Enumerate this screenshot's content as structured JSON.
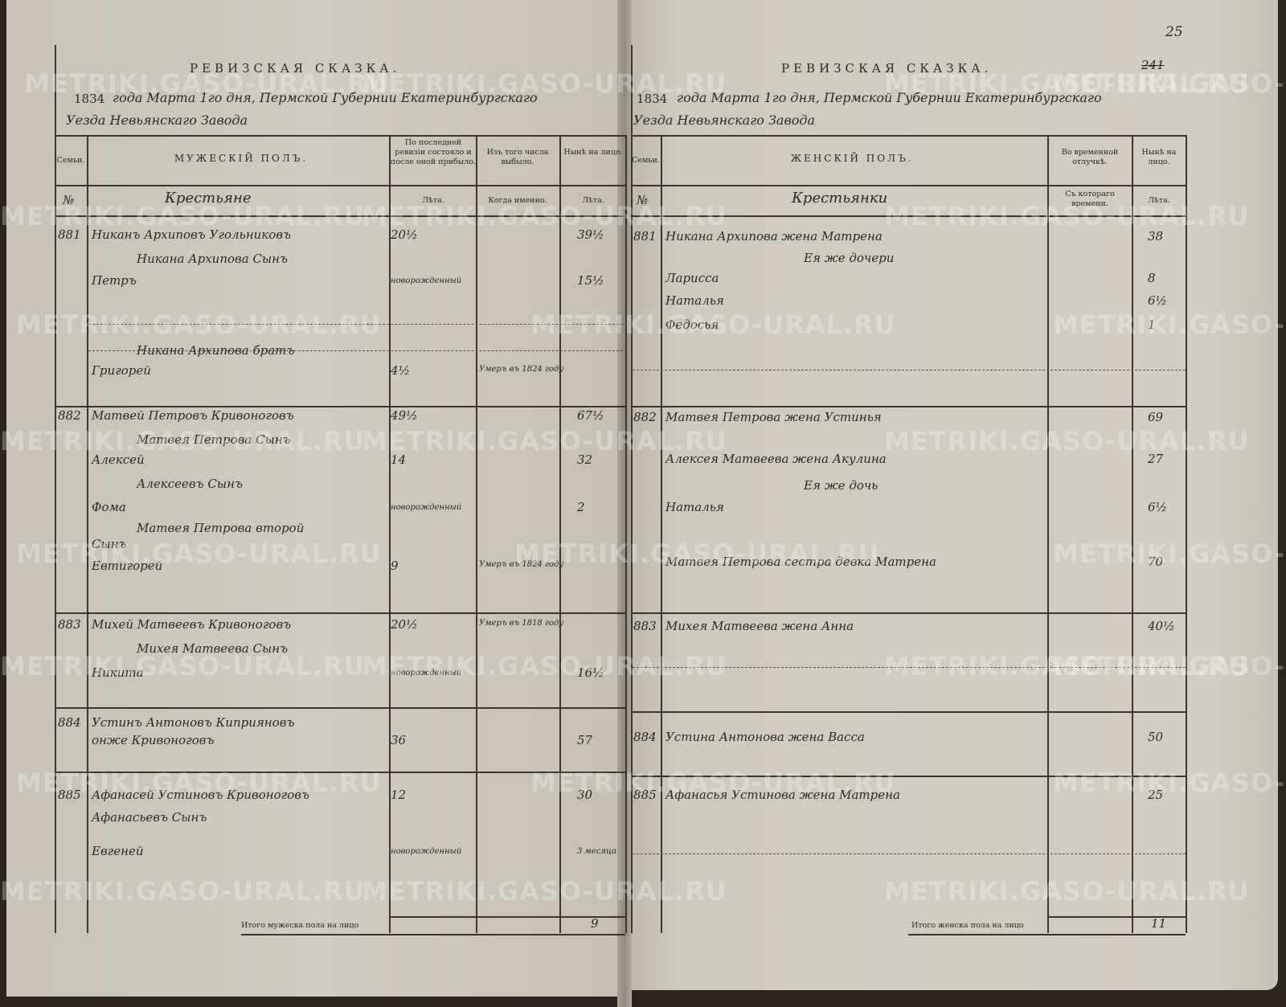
{
  "watermark": "METRIKI.GASO-URAL.RU",
  "page_number": "25",
  "old_page_number": "241",
  "left": {
    "title": "РЕВИЗСКАЯ СКАЗКА.",
    "year_printed": "1834",
    "date_line": "года Марта 1го дня, Пермской Губернии Екатеринбургскаго",
    "date_line2": "Уезда Невьянскаго Завода",
    "headers": {
      "family": "Семьи.",
      "sex": "МУЖЕСКІЙ ПОЛЪ.",
      "last_revision": "По последней ревизіи состояло и после оной прибыло.",
      "dropped": "Изъ того числа выбыло.",
      "present": "Нынѣ на лицо.",
      "no": "№",
      "estate": "Крестьяне",
      "years1": "Лѣта.",
      "when": "Когда именно.",
      "years2": "Лѣта."
    },
    "lines": [
      {
        "no": "881",
        "name": "Никанъ Архиповъ Угольниковъ",
        "age_last": "20½",
        "dropped": "",
        "age_now": "39½"
      },
      {
        "no": "",
        "name": "Никана Архипова Сынъ",
        "indent": true
      },
      {
        "no": "",
        "name": "Петръ",
        "age_last": "новорожденный",
        "dropped": "",
        "age_now": "15½"
      },
      {
        "no": "",
        "name": "Никана Архипова братъ",
        "indent": true
      },
      {
        "no": "",
        "name": "Григорей",
        "age_last": "4½",
        "dropped": "Умеръ въ 1824 году",
        "age_now": ""
      },
      {
        "no": "882",
        "name": "Матвей Петровъ Кривоноговъ",
        "age_last": "49½",
        "dropped": "",
        "age_now": "67½"
      },
      {
        "no": "",
        "name": "Матвея Петрова Сынъ",
        "indent": true
      },
      {
        "no": "",
        "name": "Алексей",
        "age_last": "14",
        "dropped": "",
        "age_now": "32"
      },
      {
        "no": "",
        "name": "Алексеевъ Сынъ",
        "indent": true
      },
      {
        "no": "",
        "name": "Фома",
        "age_last": "новорожденный",
        "dropped": "",
        "age_now": "2"
      },
      {
        "no": "",
        "name": "Матвея Петрова второй",
        "indent": true
      },
      {
        "no": "",
        "name": "Сынъ"
      },
      {
        "no": "",
        "name": "Евтигорей",
        "age_last": "9",
        "dropped": "Умеръ въ 1824 году",
        "age_now": ""
      },
      {
        "no": "883",
        "name": "Михей Матвеевъ Кривоноговъ",
        "age_last": "20½",
        "dropped": "Умеръ въ 1818 году",
        "age_now": ""
      },
      {
        "no": "",
        "name": "Михея Матвеева Сынъ",
        "indent": true
      },
      {
        "no": "",
        "name": "Никита",
        "age_last": "новорожденный",
        "dropped": "",
        "age_now": "16½"
      },
      {
        "no": "884",
        "name": "Устинъ Антоновъ Киприяновъ",
        "age_last": "",
        "dropped": "",
        "age_now": ""
      },
      {
        "no": "",
        "name": "онже Кривоноговъ",
        "age_last": "36",
        "dropped": "",
        "age_now": "57"
      },
      {
        "no": "885",
        "name": "Афанасей Устиновъ Кривоноговъ",
        "age_last": "12",
        "dropped": "",
        "age_now": "30"
      },
      {
        "no": "",
        "name": "Афанасьевъ Сынъ"
      },
      {
        "no": "",
        "name": "Евгеней",
        "age_last": "новорожденный",
        "dropped": "",
        "age_now": "3 месяца"
      }
    ],
    "total_label": "Итого мужеска пола на лицо",
    "total": "9"
  },
  "right": {
    "title": "РЕВИЗСКАЯ СКАЗКА.",
    "year_printed": "1834",
    "date_line": "года Марта 1го дня, Пермской Губернии Екатеринбургскаго",
    "date_line2": "Уезда Невьянскаго Завода",
    "headers": {
      "family": "Семьи.",
      "sex": "ЖЕНСКІЙ ПОЛЪ.",
      "absence": "Во временной отлучкѣ.",
      "present": "Нынѣ на лицо.",
      "no": "№",
      "estate": "Крестьянки",
      "since": "Съ котораго времени.",
      "years": "Лѣта."
    },
    "lines": [
      {
        "no": "881",
        "name": "Никана Архипова жена Матрена",
        "age_now": "38"
      },
      {
        "no": "",
        "name": "Ея же дочери",
        "indent": true
      },
      {
        "no": "",
        "name": "Ларисса",
        "age_now": "8"
      },
      {
        "no": "",
        "name": "Наталья",
        "age_now": "6½"
      },
      {
        "no": "",
        "name": "Федосья",
        "age_now": "1"
      },
      {
        "no": "882",
        "name": "Матвея Петрова жена Устинья",
        "age_now": "69"
      },
      {
        "no": "",
        "name": "Алексея Матвеева жена Акулина",
        "age_now": "27"
      },
      {
        "no": "",
        "name": "Ея же дочь",
        "indent": true
      },
      {
        "no": "",
        "name": "Наталья",
        "age_now": "6½"
      },
      {
        "no": "",
        "name": "Матвея Петрова сестра девка Матрена",
        "age_now": "70"
      },
      {
        "no": "883",
        "name": "Михея Матвеева жена Анна",
        "age_now": "40½"
      },
      {
        "no": "884",
        "name": "Устина Антонова жена Васса",
        "age_now": "50"
      },
      {
        "no": "885",
        "name": "Афанасья Устинова жена Матрена",
        "age_now": "25"
      }
    ],
    "total_label": "Итого женска пола на лицо",
    "total": "11"
  }
}
